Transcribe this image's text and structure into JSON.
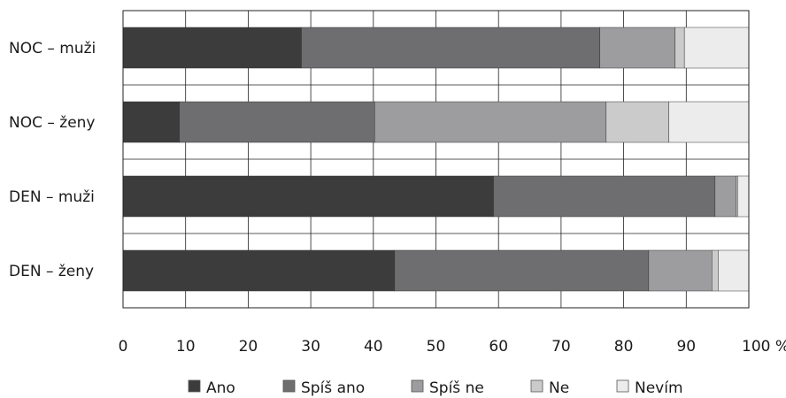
{
  "chart_data": {
    "type": "bar",
    "orientation": "horizontal",
    "stacked": true,
    "categories": [
      "NOC – muži",
      "NOC – ženy",
      "DEN – muži",
      "DEN – ženy"
    ],
    "series": [
      {
        "name": "Ano",
        "color": "#3c3c3c",
        "values": [
          28.5,
          9.0,
          59.2,
          43.4
        ]
      },
      {
        "name": "Spíš ano",
        "color": "#6e6e70",
        "values": [
          47.7,
          31.2,
          35.4,
          40.6
        ]
      },
      {
        "name": "Spíš ne",
        "color": "#9d9d9f",
        "values": [
          12.0,
          37.0,
          3.4,
          10.1
        ]
      },
      {
        "name": "Ne",
        "color": "#cbcbcb",
        "values": [
          1.5,
          10.0,
          0.2,
          1.0
        ]
      },
      {
        "name": "Nevím",
        "color": "#ececec",
        "values": [
          10.3,
          12.8,
          1.8,
          4.9
        ]
      }
    ],
    "x_ticks": [
      "0",
      "10",
      "20",
      "30",
      "40",
      "50",
      "60",
      "70",
      "80",
      "90",
      "100 %"
    ],
    "xlim": [
      0,
      100
    ],
    "grid": true,
    "legend_position": "bottom"
  }
}
